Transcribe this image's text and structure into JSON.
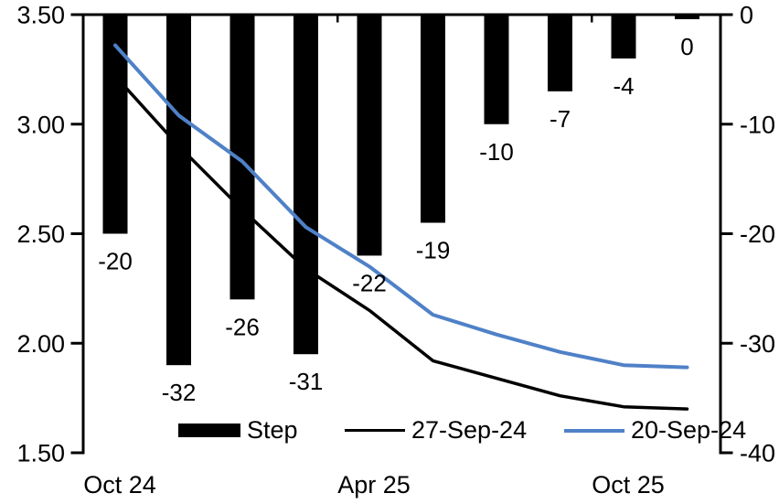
{
  "chart_data": {
    "type": "combo",
    "title": "",
    "background": "#ffffff",
    "n_categories": 10,
    "x_axis": {
      "labels": [
        {
          "label": "Oct 24",
          "index": 0
        },
        {
          "label": "Apr 25",
          "index": 4
        },
        {
          "label": "Oct 25",
          "index": 8
        }
      ]
    },
    "left_axis": {
      "min": 1.5,
      "max": 3.5,
      "ticks": [
        "3.50",
        "3.00",
        "2.50",
        "2.00",
        "1.50"
      ]
    },
    "right_axis": {
      "min": -40,
      "max": 0,
      "ticks": [
        "0",
        "-10",
        "-20",
        "-30",
        "-40"
      ]
    },
    "series": [
      {
        "name": "Step",
        "type": "bar",
        "axis": "right",
        "color": "#000000",
        "values": [
          -20,
          -32,
          -26,
          -31,
          -22,
          -19,
          -10,
          -7,
          -4,
          0
        ],
        "data_labels": [
          "-20",
          "-32",
          "-26",
          "-31",
          "-22",
          "-19",
          "-10",
          "-7",
          "-4",
          "0"
        ]
      },
      {
        "name": "27-Sep-24",
        "type": "line",
        "axis": "left",
        "color": "#000000",
        "values": [
          3.22,
          2.9,
          2.61,
          2.34,
          2.15,
          1.92,
          1.84,
          1.76,
          1.71,
          1.7
        ]
      },
      {
        "name": "20-Sep-24",
        "type": "line",
        "axis": "left",
        "color": "#4f81c7",
        "values": [
          3.36,
          3.04,
          2.83,
          2.53,
          2.35,
          2.13,
          2.04,
          1.96,
          1.9,
          1.89
        ]
      }
    ],
    "legend": {
      "position": "bottom",
      "items": [
        "Step",
        "27-Sep-24",
        "20-Sep-24"
      ]
    }
  }
}
